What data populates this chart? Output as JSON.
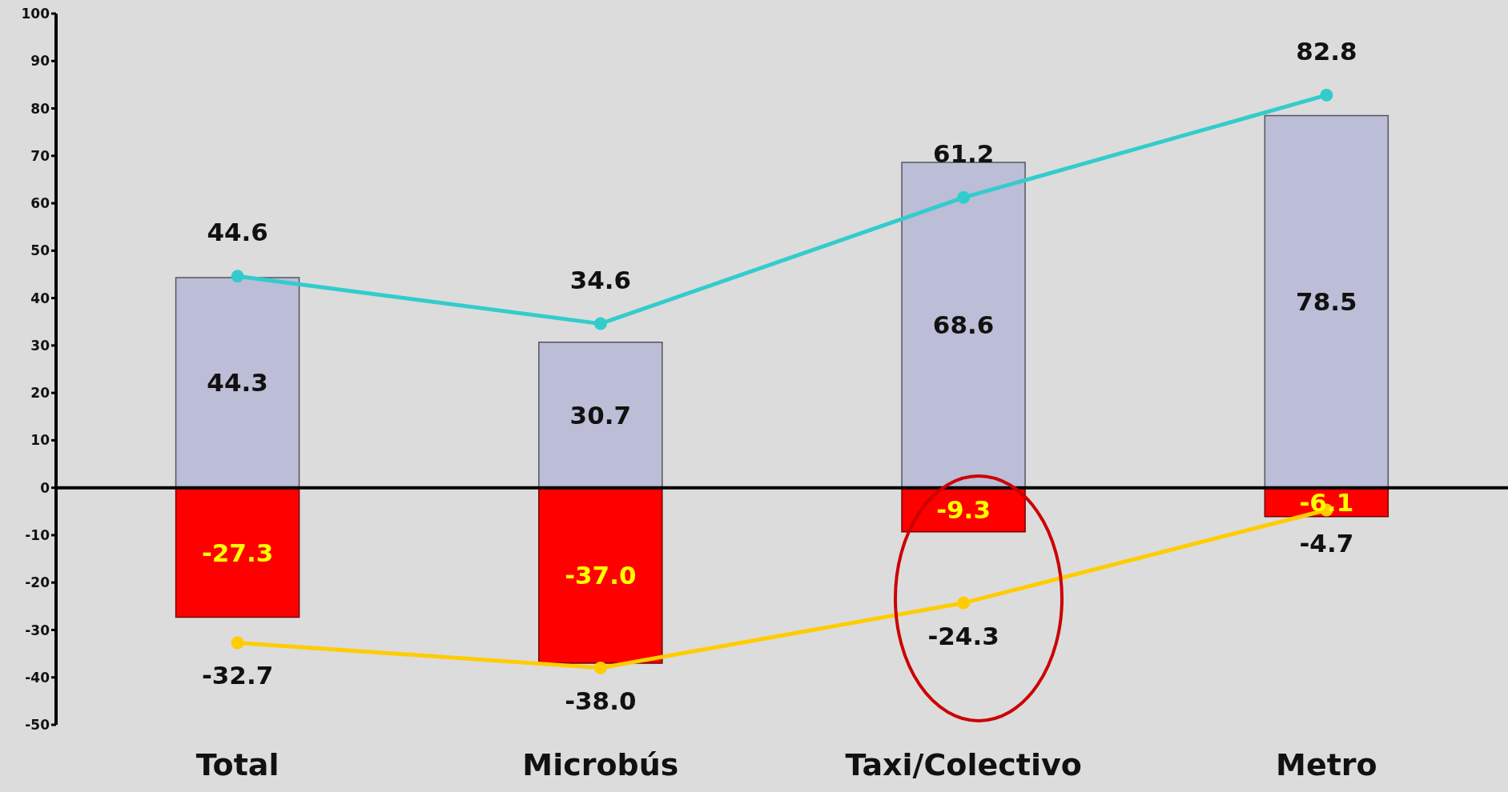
{
  "chart_data": {
    "type": "bar",
    "categories": [
      "Total",
      "Microbús",
      "Taxi/Colectivo",
      "Metro"
    ],
    "series": [
      {
        "color": "#bcbdd6",
        "values": [
          44.3,
          30.7,
          68.6,
          78.5
        ],
        "value_labels": [
          "44.3",
          "30.7",
          "68.6",
          "78.5"
        ]
      },
      {
        "color": "#ff0000",
        "values": [
          -27.3,
          -37.0,
          -9.3,
          -6.1
        ],
        "value_labels": [
          "-27.3",
          "-37.0",
          "-9.3",
          "-6.1"
        ]
      },
      {
        "type": "line",
        "color": "#33cccc",
        "values": [
          44.6,
          34.6,
          61.2,
          82.8
        ],
        "value_labels": [
          "44.6",
          "34.6",
          "61.2",
          "82.8"
        ]
      },
      {
        "type": "line",
        "color": "#ffcc00",
        "values": [
          -32.7,
          -38.0,
          -24.3,
          -4.7
        ],
        "value_labels": [
          "-32.7",
          "-38.0",
          "-24.3",
          "-4.7"
        ]
      }
    ],
    "stacked": true,
    "marker": "circle",
    "grid": false,
    "legend": false,
    "ylim": [
      -50,
      100
    ],
    "yticks": [
      -50,
      -40,
      -30,
      -20,
      -10,
      0,
      10,
      20,
      30,
      40,
      50,
      60,
      70,
      80,
      90,
      100
    ],
    "ref_lines": [
      {
        "axis": "y",
        "value": 0,
        "color": "#000000"
      }
    ]
  }
}
